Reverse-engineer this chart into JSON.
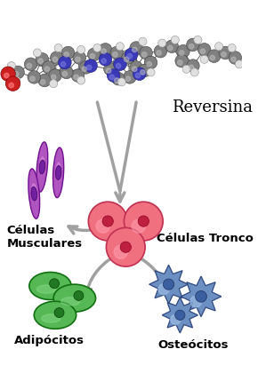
{
  "bg_color": "#ffffff",
  "reversina_label": "Reversina",
  "celulas_tronco_label": "Células Tronco",
  "celulas_musculares_label": "Células\nMusculares",
  "adipocitos_label": "Adipócitos",
  "osteocitos_label": "Osteócitos",
  "stem_cell_color": "#f07080",
  "stem_cell_nucleus_color": "#c02040",
  "muscle_cell_color": "#b055c0",
  "muscle_cell_nucleus_color": "#7020a0",
  "adipocyte_color": "#55b855",
  "adipocyte_nucleus_color": "#207820",
  "osteocyte_color": "#6a8fc0",
  "osteocyte_nucleus_color": "#3a5fa0",
  "arrow_color": "#a0a0a0",
  "label_fontsize": 9.5,
  "reversina_fontsize": 13,
  "gray_atom_color": "#808080",
  "blue_atom_color": "#3a3ab8",
  "white_atom_color": "#e0e0e0",
  "red_atom_color": "#cc2020"
}
